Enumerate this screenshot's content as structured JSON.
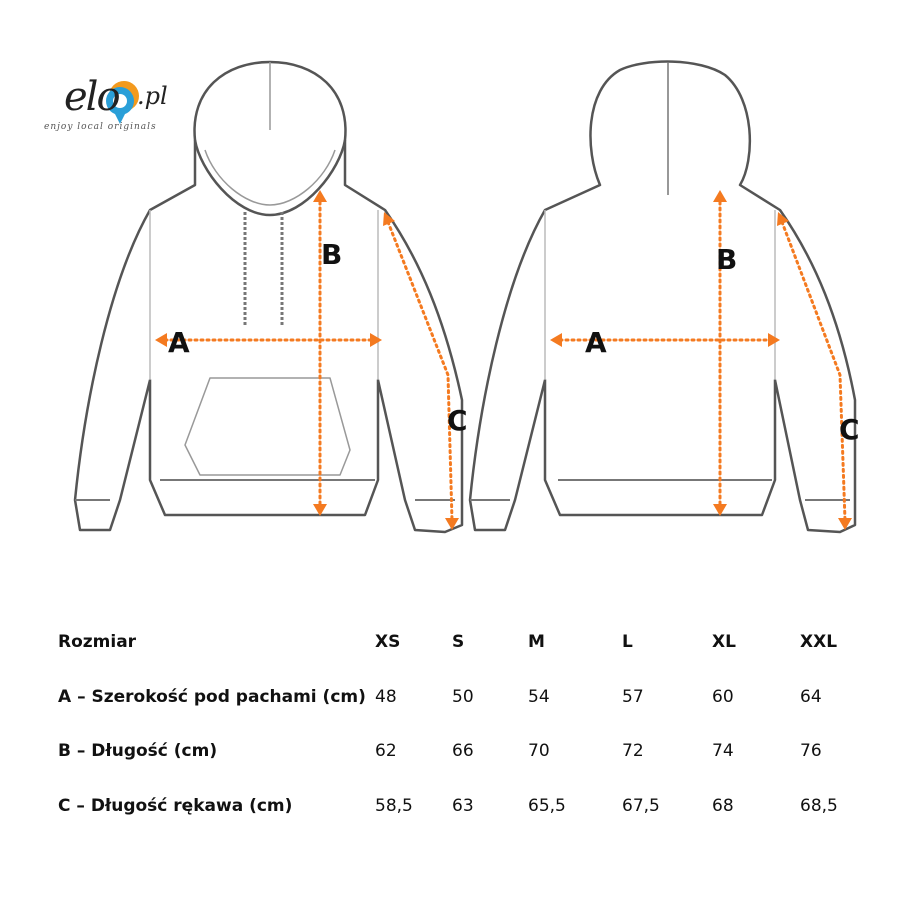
{
  "logo": {
    "brand": "elo",
    "domain": ".pl",
    "tagline": "enjoy local originals",
    "colors": {
      "orange": "#f39a1e",
      "blue": "#2a9fd8"
    }
  },
  "measure_labels": {
    "front": [
      "A",
      "B",
      "C"
    ],
    "back": [
      "A",
      "B",
      "C"
    ]
  },
  "accent_color": "#f47a20",
  "table": {
    "header": [
      "Rozmiar",
      "XS",
      "S",
      "M",
      "L",
      "XL",
      "XXL"
    ],
    "rows": [
      [
        "A – Szerokość pod pachami (cm)",
        "48",
        "50",
        "54",
        "57",
        "60",
        "64"
      ],
      [
        "B – Długość (cm)",
        "62",
        "66",
        "70",
        "72",
        "74",
        "76"
      ],
      [
        "C – Długość rękawa (cm)",
        "58,5",
        "63",
        "65,5",
        "67,5",
        "68",
        "68,5"
      ]
    ]
  }
}
